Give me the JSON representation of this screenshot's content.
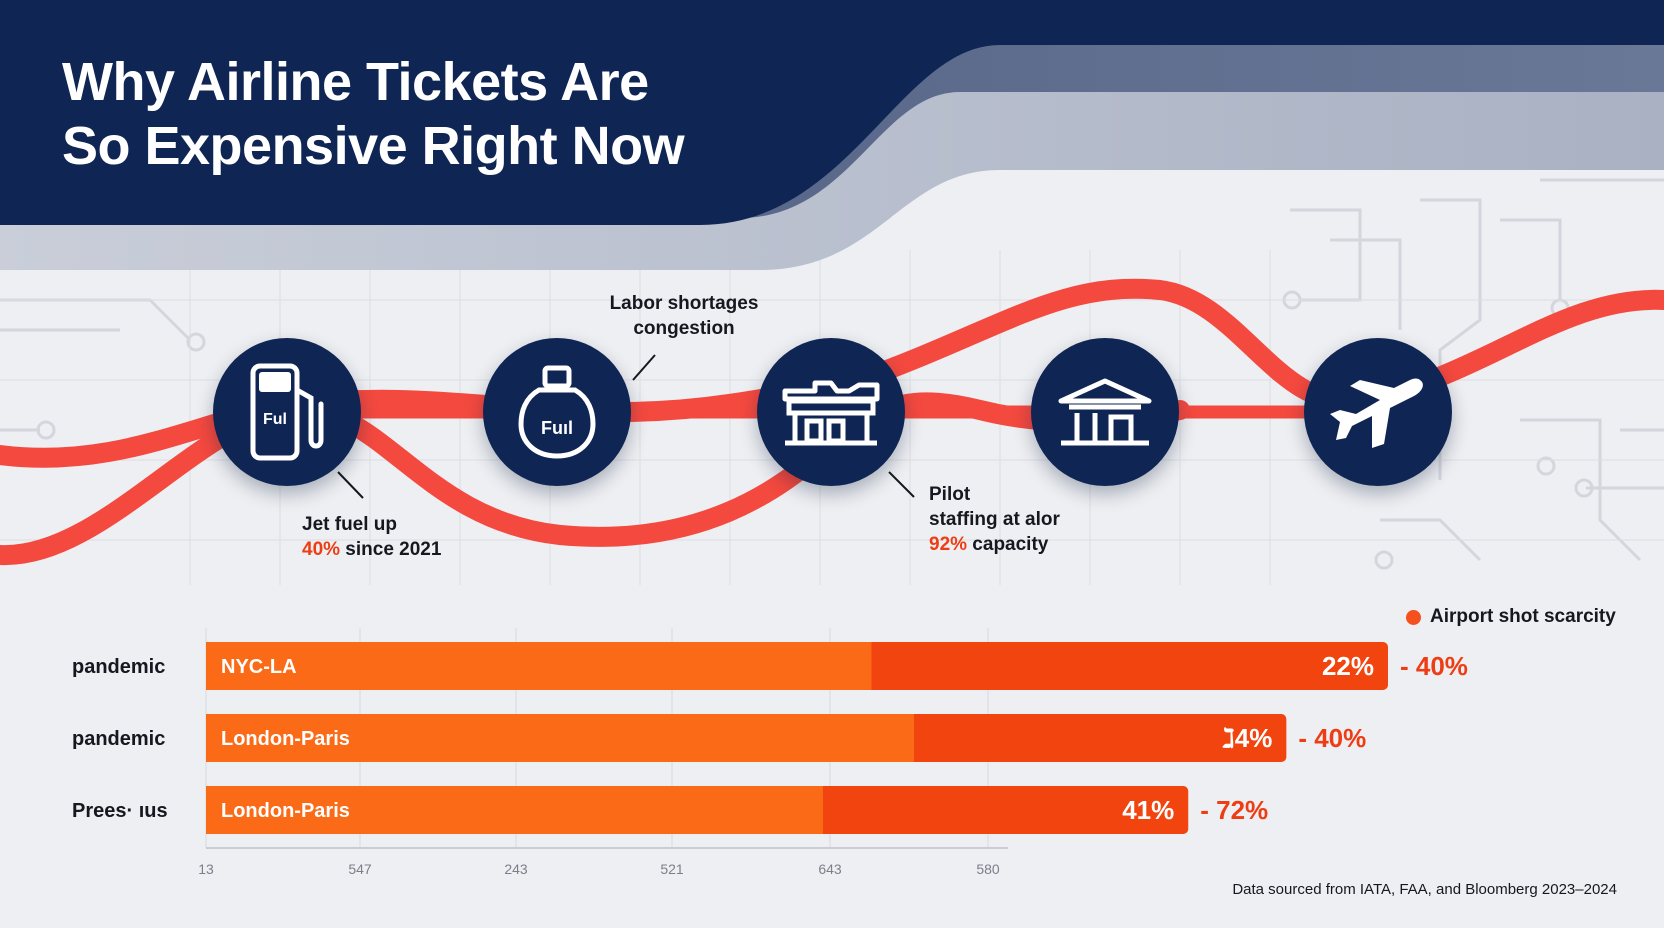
{
  "title_line1": "Why Airline Tickets Are",
  "title_line2": "So Expensive Right Now",
  "colors": {
    "navy": "#0f2553",
    "wave": "#f44a3f",
    "bar_light": "#fb6a16",
    "bar_dark": "#f2440e",
    "highlight": "#ee3d14"
  },
  "icons": [
    {
      "name": "fuel-pump-icon",
      "text": "Ful"
    },
    {
      "name": "fuel-flask-icon",
      "text": "Fuıl"
    },
    {
      "name": "terminal-building-icon",
      "text": ""
    },
    {
      "name": "government-building-icon",
      "text": ""
    },
    {
      "name": "airplane-icon",
      "text": ""
    }
  ],
  "annotations": {
    "labor": {
      "line1": "Labor shortages",
      "line2": "congestion"
    },
    "fuel": {
      "line1": "Jet fuel up",
      "highlight": "40%",
      "rest": " since 2021"
    },
    "pilot": {
      "line1": "Pilot",
      "line2": "staffing at alor",
      "highlight": "92%",
      "rest": " capacity"
    }
  },
  "legend_label": "Airport shot scarcity",
  "source_text": "Data sourced from IATA, FAA, and Bloomberg 2023–2024",
  "chart_data": {
    "type": "bar",
    "orientation": "horizontal",
    "title": "",
    "xlabel": "",
    "ylabel": "",
    "grid": true,
    "legend": "top-right",
    "x_ticks": [
      "13",
      "547",
      "243",
      "521",
      "643",
      "580"
    ],
    "categories": [
      "pandemic",
      "pandemic",
      "Prees· ıus"
    ],
    "bars": [
      {
        "route": "NYC-LA",
        "value_label": "22%",
        "change_label": "- 40%",
        "total_frac": 1.0,
        "split_frac": 0.563
      },
      {
        "route": "London-Paris",
        "value_label": "ℷ4%",
        "change_label": "- 40%",
        "total_frac": 0.914,
        "split_frac": 0.599
      },
      {
        "route": "London-Paris",
        "value_label": "41%",
        "change_label": "- 72%",
        "total_frac": 0.831,
        "split_frac": 0.522
      }
    ]
  }
}
